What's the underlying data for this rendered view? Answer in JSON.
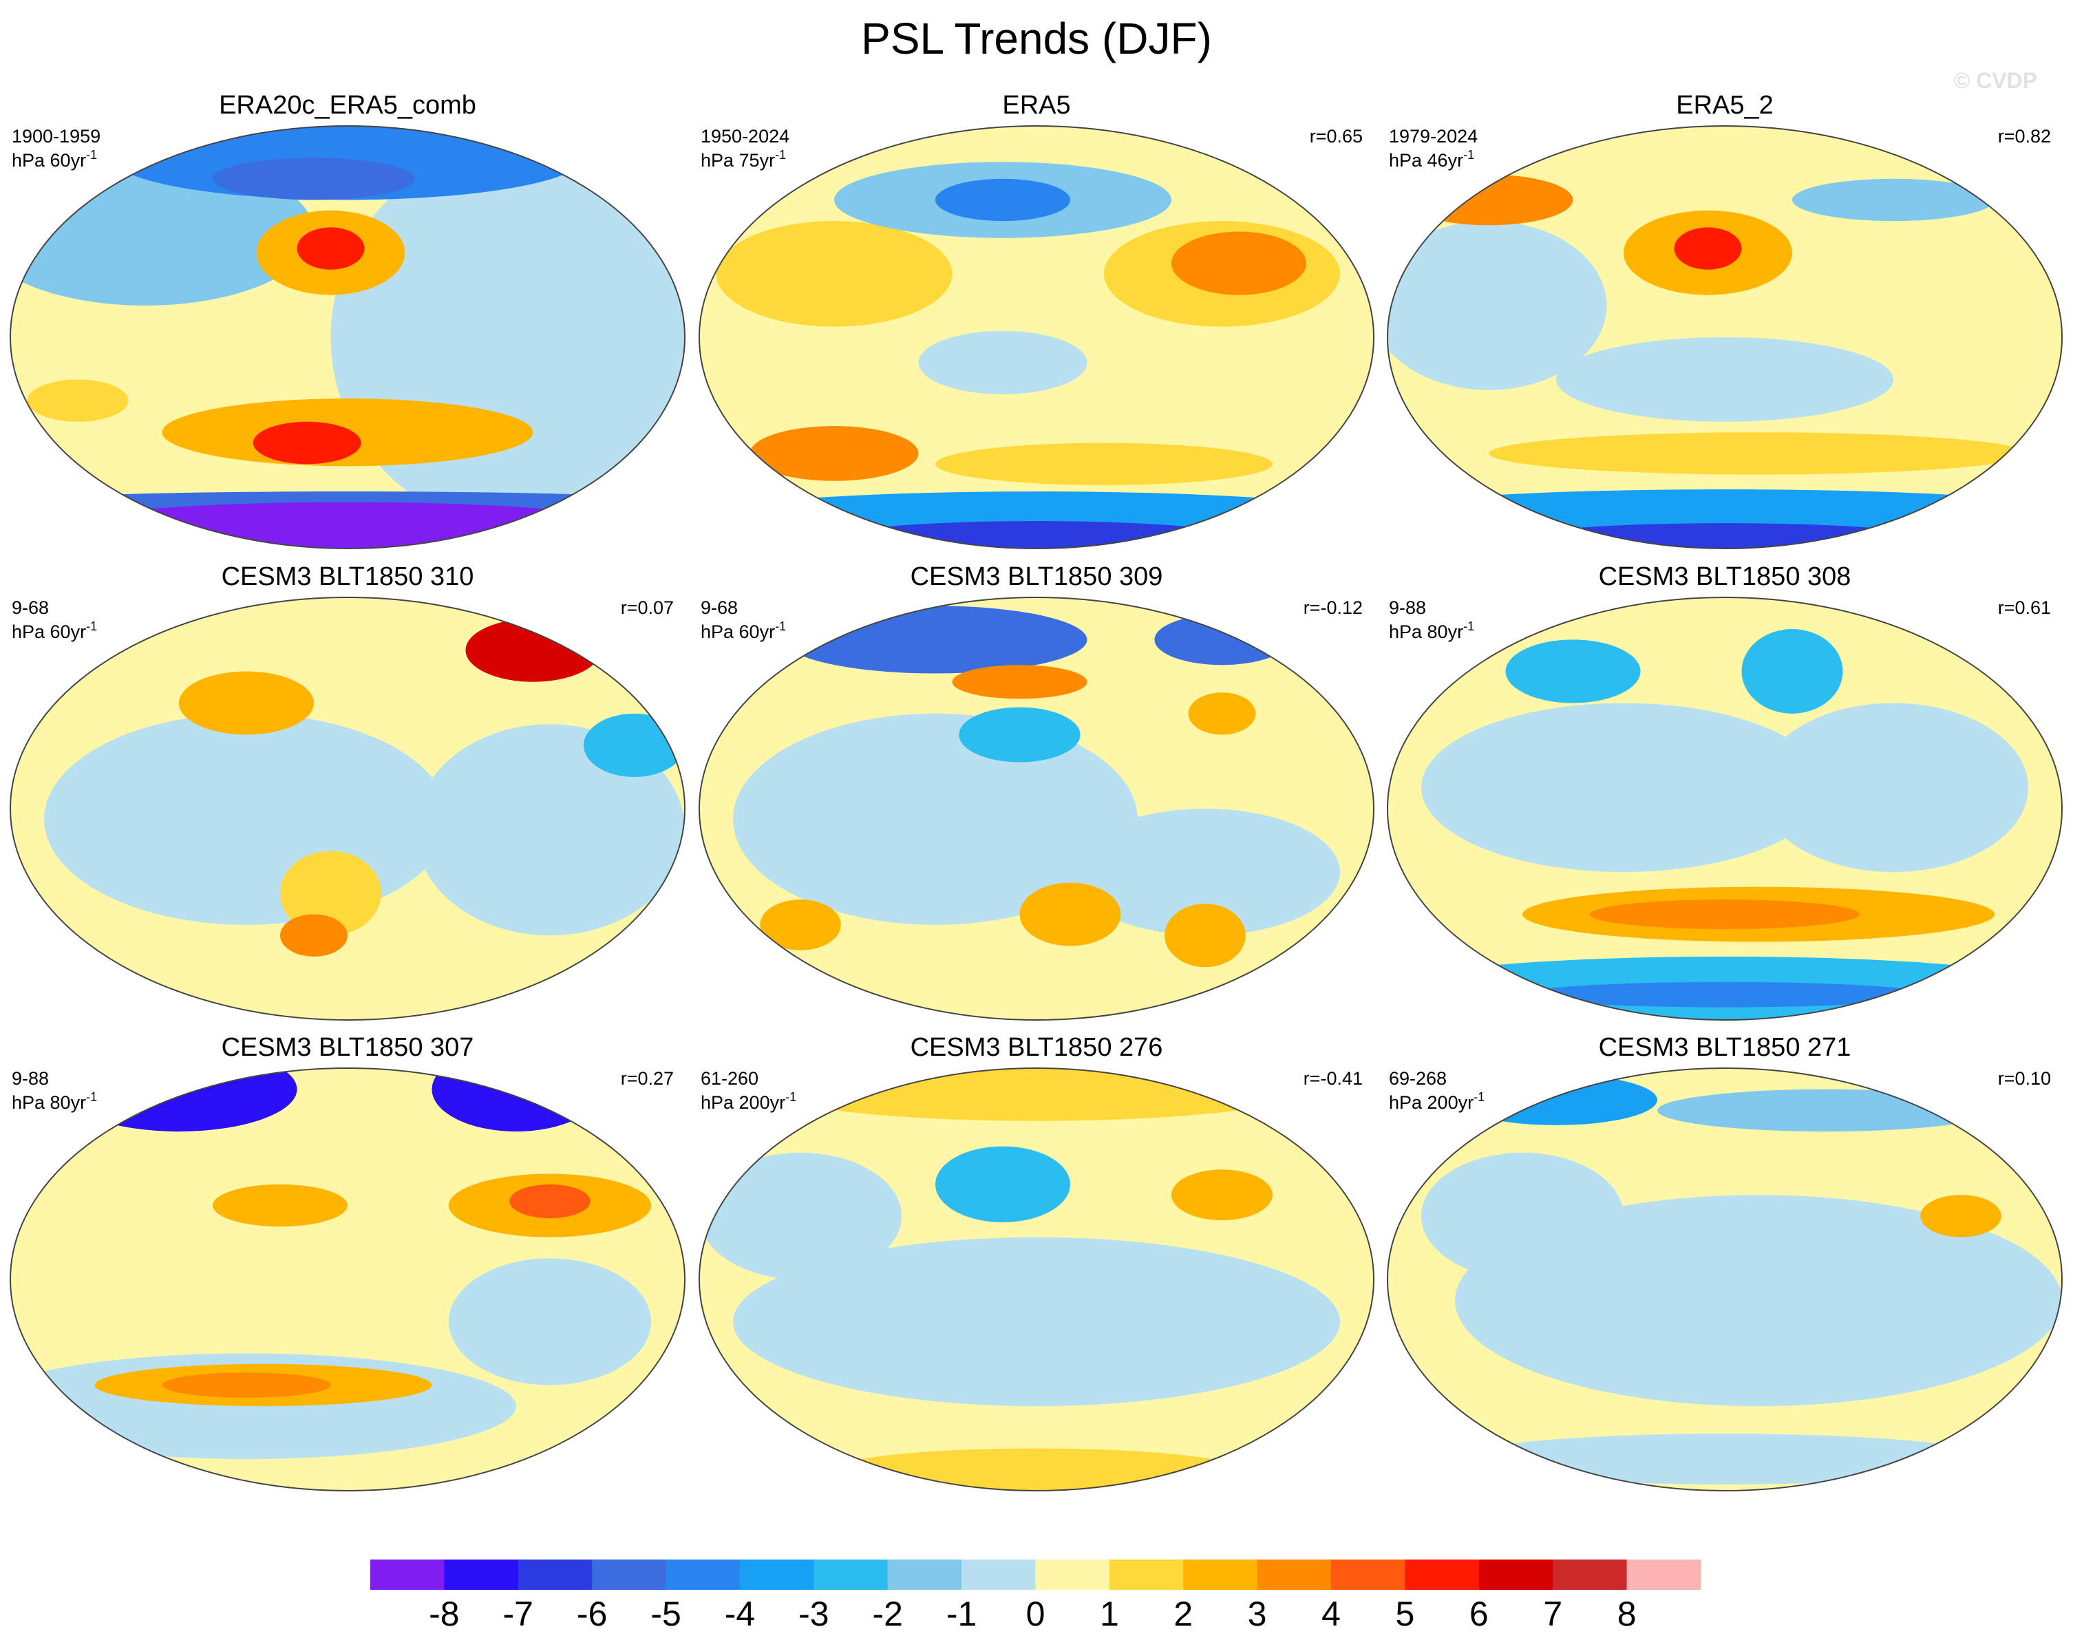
{
  "title": "PSL Trends (DJF)",
  "watermark": "© CVDP",
  "panels": [
    {
      "title": "ERA20c_ERA5_comb",
      "period": "1900-1959",
      "unit": "hPa 60yr",
      "unit_exp": "-1"
    },
    {
      "title": "ERA5",
      "period": "1950-2024",
      "unit": "hPa 75yr",
      "unit_exp": "-1",
      "r": "r=0.65"
    },
    {
      "title": "ERA5_2",
      "period": "1979-2024",
      "unit": "hPa 46yr",
      "unit_exp": "-1",
      "r": "r=0.82"
    },
    {
      "title": "CESM3 BLT1850 310",
      "period": "9-68",
      "unit": "hPa 60yr",
      "unit_exp": "-1",
      "r": "r=0.07"
    },
    {
      "title": "CESM3 BLT1850 309",
      "period": "9-68",
      "unit": "hPa 60yr",
      "unit_exp": "-1",
      "r": "r=-0.12"
    },
    {
      "title": "CESM3 BLT1850 308",
      "period": "9-88",
      "unit": "hPa 80yr",
      "unit_exp": "-1",
      "r": "r=0.61"
    },
    {
      "title": "CESM3 BLT1850 307",
      "period": "9-88",
      "unit": "hPa 80yr",
      "unit_exp": "-1",
      "r": "r=0.27"
    },
    {
      "title": "CESM3 BLT1850 276",
      "period": "61-260",
      "unit": "hPa 200yr",
      "unit_exp": "-1",
      "r": "r=-0.41"
    },
    {
      "title": "CESM3 BLT1850 271",
      "period": "69-268",
      "unit": "hPa 200yr",
      "unit_exp": "-1",
      "r": "r=0.10"
    }
  ],
  "colorbar": {
    "colors": [
      "#7e1ef0",
      "#2a0ef5",
      "#2b3be0",
      "#3a6ee0",
      "#2a84f0",
      "#18a0f5",
      "#2bbcf0",
      "#80c8ec",
      "#b8e0f0",
      "#fff7a8",
      "#ffd83a",
      "#ffb400",
      "#ff8a00",
      "#ff5a10",
      "#ff1a00",
      "#d80000",
      "#cc2a2a",
      "#ffb4b4"
    ],
    "ticks": [
      -8,
      -7,
      -6,
      -5,
      -4,
      -3,
      -2,
      -1,
      0,
      1,
      2,
      3,
      4,
      5,
      6,
      7,
      8
    ]
  }
}
